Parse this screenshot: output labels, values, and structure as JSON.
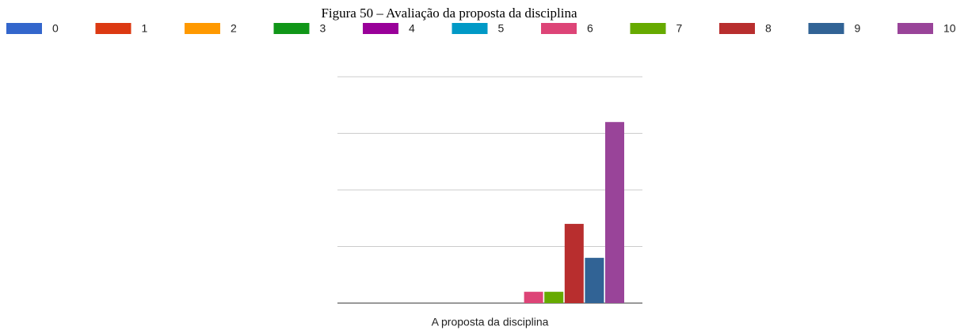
{
  "chart_data": {
    "type": "bar",
    "title": "Figura 50 – Avaliação da proposta da disciplina",
    "categories": [
      "A proposta da disciplina"
    ],
    "series": [
      {
        "name": "0",
        "color": "#3366cc",
        "values": [
          0
        ]
      },
      {
        "name": "1",
        "color": "#dc3912",
        "values": [
          0
        ]
      },
      {
        "name": "2",
        "color": "#ff9900",
        "values": [
          0
        ]
      },
      {
        "name": "3",
        "color": "#109618",
        "values": [
          0
        ]
      },
      {
        "name": "4",
        "color": "#990099",
        "values": [
          0
        ]
      },
      {
        "name": "5",
        "color": "#0099c6",
        "values": [
          0
        ]
      },
      {
        "name": "6",
        "color": "#dd4477",
        "values": [
          1
        ]
      },
      {
        "name": "7",
        "color": "#66aa00",
        "values": [
          1
        ]
      },
      {
        "name": "8",
        "color": "#b82e2e",
        "values": [
          7
        ]
      },
      {
        "name": "9",
        "color": "#316395",
        "values": [
          4
        ]
      },
      {
        "name": "10",
        "color": "#994499",
        "values": [
          16
        ]
      }
    ],
    "ylim": [
      0,
      20
    ],
    "yticks": [
      0,
      5,
      10,
      15,
      20
    ],
    "grid": true,
    "legend": "top"
  }
}
